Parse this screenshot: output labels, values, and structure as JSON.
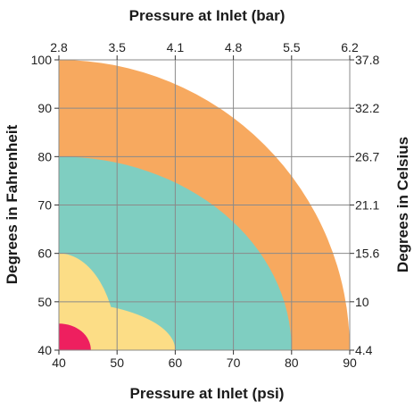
{
  "chart_data": {
    "type": "area",
    "x_bottom": {
      "label": "Pressure at Inlet (psi)",
      "range": [
        40,
        90
      ],
      "ticks": [
        "40",
        "50",
        "60",
        "70",
        "80",
        "90"
      ]
    },
    "x_top": {
      "label": "Pressure at Inlet (bar)",
      "ticks": [
        "2.8",
        "3.5",
        "4.1",
        "4.8",
        "5.5",
        "6.2"
      ]
    },
    "y_left": {
      "label": "Degrees in Fahrenheit",
      "range": [
        40,
        100
      ],
      "ticks": [
        "40",
        "50",
        "60",
        "70",
        "80",
        "90",
        "100"
      ]
    },
    "y_right": {
      "label": "Degrees in Celsius",
      "ticks": [
        "4.4",
        "10",
        "15.6",
        "21.1",
        "26.7",
        "32.2",
        "37.8"
      ]
    },
    "grid": true,
    "regions": [
      {
        "color": "#F7A95F",
        "shape": "quarter-circle",
        "center": [
          40,
          40
        ],
        "extent_x": 90,
        "extent_y": 100
      },
      {
        "color": "#7FCEC1",
        "shape": "quarter-circle",
        "center": [
          40,
          40
        ],
        "extent_x": 80,
        "extent_y": 80
      },
      {
        "color": "#FCDD86",
        "shape": "quarter-circle",
        "center": [
          40,
          40
        ],
        "extent_x": 50,
        "extent_y": 60
      },
      {
        "color": "#FCDD86",
        "shape": "quarter-circle",
        "center": [
          40,
          40
        ],
        "extent_x": 60,
        "extent_y": 50
      },
      {
        "color": "#EE1F5F",
        "shape": "quarter-circle",
        "center": [
          40,
          40
        ],
        "extent_x": 45.5,
        "extent_y": 45.5
      }
    ]
  }
}
